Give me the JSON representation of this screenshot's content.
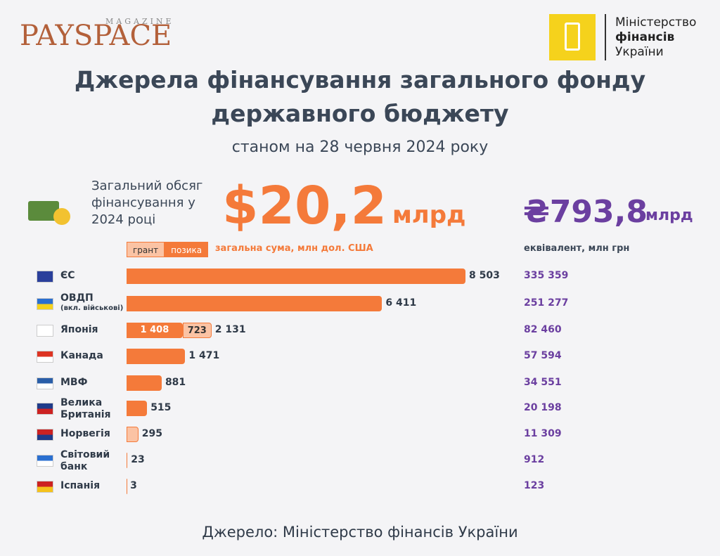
{
  "header": {
    "brand": "PAYSPACE",
    "brand_sub": "MAGAZINE",
    "ministry": [
      "Міністерство",
      "фінансів",
      "України"
    ]
  },
  "chart_data": {
    "type": "bar",
    "title": [
      "Джерела фінансування загального фонду",
      "державного бюджету"
    ],
    "subtitle": "станом на 28 червня 2024 року",
    "total_caption": "Загальний обсяг фінансування у 2024 році",
    "total_usd": "$20,2",
    "total_usd_unit": "млрд",
    "total_uah": "₴793,8",
    "total_uah_unit": "млрд",
    "usd_caption": "загальна сума, млн дол. США",
    "uah_caption": "еквівалент, млн грн",
    "categories": [
      "ЄС",
      "ОВДП",
      "Японія",
      "Канада",
      "МВФ",
      "Велика Британія",
      "Норвегія",
      "Світовий банк",
      "Іспанія"
    ],
    "category_notes": [
      null,
      "(вкл. військові)",
      null,
      null,
      null,
      null,
      null,
      null,
      null
    ],
    "series": [
      {
        "name": "позика",
        "color": "#f47a3a",
        "values": [
          8503,
          6411,
          1408,
          1471,
          881,
          515,
          null,
          23,
          3
        ],
        "value_labels": [
          null,
          null,
          "1 408",
          null,
          null,
          null,
          null,
          null,
          null
        ]
      },
      {
        "name": "грант",
        "color": "#fbc3a4",
        "values": [
          null,
          null,
          723,
          null,
          null,
          null,
          295,
          null,
          null
        ],
        "value_labels": [
          null,
          null,
          "723",
          null,
          null,
          null,
          null,
          null,
          null
        ]
      }
    ],
    "total_labels": [
      "8 503",
      "6 411",
      "2 131",
      "1 471",
      "881",
      "515",
      "295",
      "23",
      "3"
    ],
    "uah_labels": [
      "335 359",
      "251 277",
      "82 460",
      "57 594",
      "34 551",
      "20 198",
      "11 309",
      "912",
      "123"
    ],
    "source": "Джерело: Міністерство фінансів України"
  }
}
